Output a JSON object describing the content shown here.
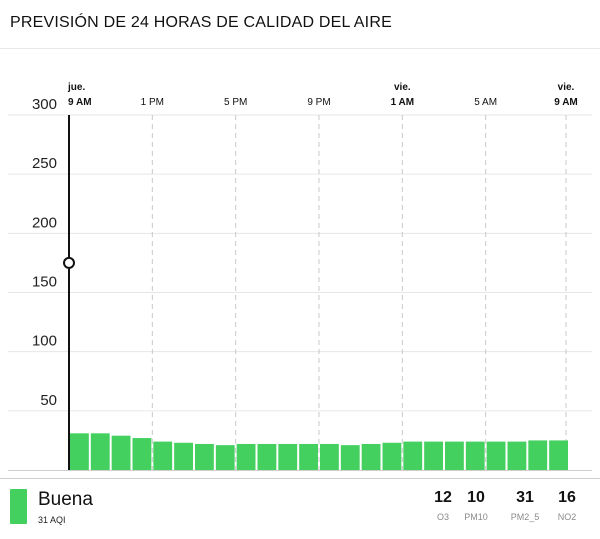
{
  "title": "PREVISIÓN DE 24 HORAS DE CALIDAD DEL AIRE",
  "colors": {
    "good": "#44d05f",
    "grid": "#e6e6e6",
    "dash": "#c8c8c8",
    "axis": "#111111"
  },
  "chart_data": {
    "type": "bar",
    "x_ticks": [
      {
        "hour": 0,
        "day": "jue.",
        "time": "9 AM"
      },
      {
        "hour": 4,
        "day": "",
        "time": "1 PM"
      },
      {
        "hour": 8,
        "day": "",
        "time": "5 PM"
      },
      {
        "hour": 12,
        "day": "",
        "time": "9 PM"
      },
      {
        "hour": 16,
        "day": "vie.",
        "time": "1 AM"
      },
      {
        "hour": 20,
        "day": "",
        "time": "5 AM"
      },
      {
        "hour": 24,
        "day": "vie.",
        "time": "9 AM"
      }
    ],
    "values": [
      31,
      31,
      29,
      27,
      24,
      23,
      22,
      21,
      22,
      22,
      22,
      22,
      22,
      21,
      22,
      23,
      24,
      24,
      24,
      24,
      24,
      24,
      25,
      25
    ],
    "yticks": [
      50,
      100,
      150,
      200,
      250,
      300
    ],
    "ylim": [
      0,
      300
    ],
    "cursor": {
      "hour": 0,
      "value": 175
    },
    "grid": true
  },
  "footer": {
    "level": "Buena",
    "aqi": "31 AQI",
    "pollutants": [
      {
        "value": "12",
        "name": "O3"
      },
      {
        "value": "10",
        "name": "PM10"
      },
      {
        "value": "31",
        "name": "PM2_5"
      },
      {
        "value": "16",
        "name": "NO2"
      }
    ]
  }
}
